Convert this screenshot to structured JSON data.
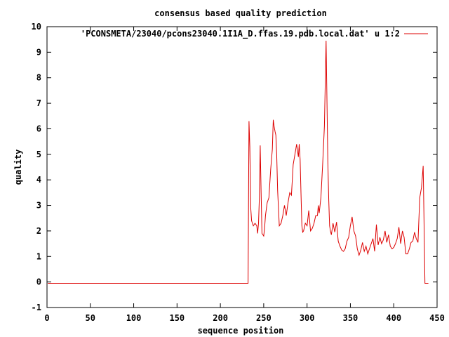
{
  "chart_data": {
    "type": "line",
    "title": "consensus based quality prediction",
    "xlabel": "sequence position",
    "ylabel": "quality",
    "xlim": [
      0,
      450
    ],
    "ylim": [
      -1,
      10
    ],
    "xticks": [
      0,
      50,
      100,
      150,
      200,
      250,
      300,
      350,
      400,
      450
    ],
    "yticks": [
      -1,
      0,
      1,
      2,
      3,
      4,
      5,
      6,
      7,
      8,
      9,
      10
    ],
    "grid": false,
    "legend_position": "top-right",
    "series": [
      {
        "name": "'PCONSMETA/23040/pcons23040.1I1A_D.ffas.19.pdb.local.dat' u 1:2",
        "color": "#dd0000",
        "x": [
          1,
          232,
          233,
          234,
          235,
          236,
          237,
          238,
          240,
          242,
          243,
          244,
          245,
          246,
          247,
          248,
          249,
          250,
          251,
          252,
          254,
          256,
          258,
          260,
          261,
          262,
          263,
          264,
          265,
          266,
          268,
          270,
          272,
          274,
          276,
          278,
          280,
          282,
          284,
          286,
          288,
          290,
          291,
          292,
          293,
          294,
          295,
          296,
          298,
          300,
          302,
          304,
          306,
          308,
          310,
          312,
          313,
          314,
          316,
          318,
          320,
          322,
          323,
          324,
          325,
          326,
          327,
          328,
          330,
          332,
          334,
          336,
          338,
          340,
          342,
          344,
          346,
          348,
          350,
          352,
          354,
          356,
          358,
          360,
          362,
          364,
          366,
          368,
          370,
          372,
          374,
          376,
          378,
          380,
          382,
          384,
          386,
          388,
          390,
          392,
          394,
          396,
          398,
          400,
          402,
          404,
          406,
          408,
          410,
          412,
          414,
          416,
          418,
          420,
          422,
          424,
          426,
          428,
          430,
          432,
          434,
          435,
          436,
          437,
          438,
          440
        ],
        "y": [
          -0.05,
          -0.05,
          6.3,
          5.3,
          2.9,
          2.4,
          2.3,
          2.2,
          2.3,
          2.2,
          1.9,
          2.3,
          3.3,
          5.35,
          3.5,
          1.9,
          1.85,
          1.8,
          2.1,
          2.6,
          3.1,
          3.3,
          4.4,
          5.2,
          6.35,
          6.1,
          5.9,
          5.75,
          5.0,
          3.6,
          2.2,
          2.3,
          2.6,
          3.0,
          2.6,
          3.1,
          3.5,
          3.4,
          4.6,
          5.0,
          5.4,
          4.9,
          5.4,
          4.8,
          3.5,
          2.2,
          1.95,
          2.0,
          2.3,
          2.2,
          2.8,
          2.0,
          2.1,
          2.3,
          2.6,
          2.6,
          3.0,
          2.7,
          3.3,
          4.6,
          6.1,
          9.45,
          7.0,
          4.7,
          3.2,
          2.2,
          2.0,
          1.85,
          2.3,
          1.95,
          2.35,
          1.6,
          1.4,
          1.25,
          1.2,
          1.3,
          1.6,
          1.75,
          2.2,
          2.55,
          2.0,
          1.8,
          1.3,
          1.05,
          1.25,
          1.55,
          1.2,
          1.4,
          1.1,
          1.3,
          1.5,
          1.7,
          1.2,
          2.25,
          1.45,
          1.75,
          1.5,
          1.65,
          2.0,
          1.55,
          1.85,
          1.4,
          1.3,
          1.35,
          1.5,
          1.7,
          2.15,
          1.5,
          2.0,
          1.75,
          1.1,
          1.1,
          1.3,
          1.55,
          1.6,
          1.95,
          1.7,
          1.55,
          3.3,
          3.7,
          4.55,
          2.2,
          -0.05,
          -0.05,
          -0.05,
          -0.05
        ]
      }
    ]
  }
}
